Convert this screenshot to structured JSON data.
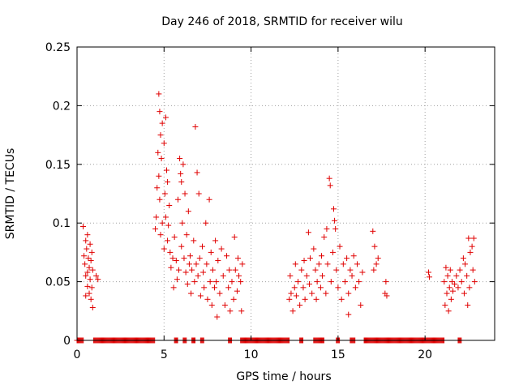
{
  "chart_data": {
    "type": "scatter",
    "title": "Day 246 of 2018, SRMTID for receiver wilu",
    "xlabel": "GPS time / hours",
    "ylabel": "SRMTID / TECUs",
    "xlim": [
      0,
      24
    ],
    "ylim": [
      0,
      0.25
    ],
    "xticks": [
      0,
      5,
      10,
      15,
      20
    ],
    "xtick_labels": [
      "0",
      "5",
      "10",
      "15",
      "20"
    ],
    "yticks": [
      0,
      0.05,
      0.1,
      0.15,
      0.2,
      0.25
    ],
    "ytick_labels": [
      "0",
      "0.05",
      "0.1",
      "0.15",
      "0.2",
      "0.25"
    ],
    "grid": true,
    "marker": "+",
    "color": "#e00000",
    "series": [
      {
        "name": "SRMTID",
        "points": [
          [
            0.35,
            0.097
          ],
          [
            0.4,
            0.072
          ],
          [
            0.45,
            0.065
          ],
          [
            0.5,
            0.085
          ],
          [
            0.5,
            0.055
          ],
          [
            0.55,
            0.078
          ],
          [
            0.6,
            0.09
          ],
          [
            0.6,
            0.046
          ],
          [
            0.65,
            0.07
          ],
          [
            0.7,
            0.062
          ],
          [
            0.7,
            0.04
          ],
          [
            0.75,
            0.082
          ],
          [
            0.75,
            0.052
          ],
          [
            0.8,
            0.068
          ],
          [
            0.8,
            0.035
          ],
          [
            0.85,
            0.075
          ],
          [
            0.85,
            0.045
          ],
          [
            0.9,
            0.06
          ],
          [
            0.9,
            0.028
          ],
          [
            0.5,
            0.038
          ],
          [
            0.6,
            0.058
          ],
          [
            1.1,
            0.055
          ],
          [
            1.2,
            0.052
          ],
          [
            4.5,
            0.095
          ],
          [
            4.55,
            0.105
          ],
          [
            4.6,
            0.13
          ],
          [
            4.65,
            0.16
          ],
          [
            4.7,
            0.21
          ],
          [
            4.7,
            0.14
          ],
          [
            4.75,
            0.195
          ],
          [
            4.75,
            0.12
          ],
          [
            4.8,
            0.175
          ],
          [
            4.8,
            0.09
          ],
          [
            4.85,
            0.155
          ],
          [
            4.9,
            0.185
          ],
          [
            4.9,
            0.1
          ],
          [
            5.0,
            0.168
          ],
          [
            5.0,
            0.078
          ],
          [
            5.05,
            0.125
          ],
          [
            5.1,
            0.19
          ],
          [
            5.1,
            0.105
          ],
          [
            5.15,
            0.145
          ],
          [
            5.2,
            0.135
          ],
          [
            5.2,
            0.085
          ],
          [
            5.25,
            0.098
          ],
          [
            5.3,
            0.115
          ],
          [
            5.35,
            0.075
          ],
          [
            5.4,
            0.062
          ],
          [
            5.5,
            0.07
          ],
          [
            5.55,
            0.045
          ],
          [
            5.6,
            0.088
          ],
          [
            5.7,
            0.068
          ],
          [
            5.75,
            0.052
          ],
          [
            5.8,
            0.12
          ],
          [
            5.85,
            0.06
          ],
          [
            5.9,
            0.155
          ],
          [
            5.95,
            0.142
          ],
          [
            6.0,
            0.135
          ],
          [
            6.0,
            0.08
          ],
          [
            6.05,
            0.1
          ],
          [
            6.1,
            0.15
          ],
          [
            6.15,
            0.07
          ],
          [
            6.2,
            0.125
          ],
          [
            6.25,
            0.058
          ],
          [
            6.3,
            0.09
          ],
          [
            6.35,
            0.048
          ],
          [
            6.4,
            0.11
          ],
          [
            6.45,
            0.065
          ],
          [
            6.5,
            0.072
          ],
          [
            6.55,
            0.04
          ],
          [
            6.6,
            0.06
          ],
          [
            6.7,
            0.085
          ],
          [
            6.75,
            0.05
          ],
          [
            6.8,
            0.182
          ],
          [
            6.85,
            0.065
          ],
          [
            6.9,
            0.143
          ],
          [
            6.95,
            0.055
          ],
          [
            7.0,
            0.125
          ],
          [
            7.05,
            0.07
          ],
          [
            7.1,
            0.038
          ],
          [
            7.2,
            0.08
          ],
          [
            7.25,
            0.058
          ],
          [
            7.3,
            0.045
          ],
          [
            7.4,
            0.1
          ],
          [
            7.45,
            0.065
          ],
          [
            7.5,
            0.035
          ],
          [
            7.6,
            0.12
          ],
          [
            7.65,
            0.05
          ],
          [
            7.7,
            0.075
          ],
          [
            7.75,
            0.03
          ],
          [
            7.8,
            0.06
          ],
          [
            7.9,
            0.045
          ],
          [
            7.95,
            0.085
          ],
          [
            8.0,
            0.05
          ],
          [
            8.05,
            0.02
          ],
          [
            8.1,
            0.068
          ],
          [
            8.2,
            0.04
          ],
          [
            8.3,
            0.078
          ],
          [
            8.4,
            0.055
          ],
          [
            8.5,
            0.03
          ],
          [
            8.6,
            0.072
          ],
          [
            8.7,
            0.045
          ],
          [
            8.75,
            0.06
          ],
          [
            8.8,
            0.025
          ],
          [
            8.9,
            0.05
          ],
          [
            9.0,
            0.035
          ],
          [
            9.05,
            0.088
          ],
          [
            9.1,
            0.06
          ],
          [
            9.2,
            0.042
          ],
          [
            9.25,
            0.07
          ],
          [
            9.3,
            0.055
          ],
          [
            9.4,
            0.05
          ],
          [
            9.45,
            0.025
          ],
          [
            9.5,
            0.065
          ],
          [
            12.2,
            0.035
          ],
          [
            12.25,
            0.055
          ],
          [
            12.3,
            0.04
          ],
          [
            12.4,
            0.025
          ],
          [
            12.5,
            0.045
          ],
          [
            12.55,
            0.065
          ],
          [
            12.6,
            0.038
          ],
          [
            12.7,
            0.05
          ],
          [
            12.8,
            0.03
          ],
          [
            12.9,
            0.06
          ],
          [
            13.0,
            0.045
          ],
          [
            13.05,
            0.068
          ],
          [
            13.1,
            0.035
          ],
          [
            13.2,
            0.055
          ],
          [
            13.3,
            0.092
          ],
          [
            13.35,
            0.048
          ],
          [
            13.4,
            0.07
          ],
          [
            13.5,
            0.04
          ],
          [
            13.6,
            0.078
          ],
          [
            13.7,
            0.06
          ],
          [
            13.75,
            0.035
          ],
          [
            13.8,
            0.05
          ],
          [
            13.9,
            0.065
          ],
          [
            14.0,
            0.045
          ],
          [
            14.05,
            0.072
          ],
          [
            14.1,
            0.055
          ],
          [
            14.2,
            0.088
          ],
          [
            14.3,
            0.04
          ],
          [
            14.35,
            0.095
          ],
          [
            14.4,
            0.065
          ],
          [
            14.5,
            0.138
          ],
          [
            14.55,
            0.132
          ],
          [
            14.6,
            0.05
          ],
          [
            14.7,
            0.075
          ],
          [
            14.75,
            0.112
          ],
          [
            14.8,
            0.102
          ],
          [
            14.85,
            0.095
          ],
          [
            14.9,
            0.06
          ],
          [
            15.0,
            0.045
          ],
          [
            15.1,
            0.08
          ],
          [
            15.2,
            0.035
          ],
          [
            15.3,
            0.065
          ],
          [
            15.4,
            0.05
          ],
          [
            15.5,
            0.07
          ],
          [
            15.6,
            0.04
          ],
          [
            15.7,
            0.06
          ],
          [
            15.8,
            0.055
          ],
          [
            15.9,
            0.072
          ],
          [
            16.0,
            0.045
          ],
          [
            16.1,
            0.065
          ],
          [
            16.2,
            0.05
          ],
          [
            16.3,
            0.03
          ],
          [
            16.4,
            0.058
          ],
          [
            15.6,
            0.022
          ],
          [
            17.0,
            0.093
          ],
          [
            17.05,
            0.06
          ],
          [
            17.1,
            0.08
          ],
          [
            17.2,
            0.065
          ],
          [
            17.3,
            0.07
          ],
          [
            17.7,
            0.04
          ],
          [
            17.75,
            0.05
          ],
          [
            17.8,
            0.038
          ],
          [
            20.2,
            0.058
          ],
          [
            20.25,
            0.054
          ],
          [
            21.1,
            0.05
          ],
          [
            21.15,
            0.03
          ],
          [
            21.2,
            0.062
          ],
          [
            21.25,
            0.04
          ],
          [
            21.3,
            0.055
          ],
          [
            21.35,
            0.025
          ],
          [
            21.4,
            0.045
          ],
          [
            21.45,
            0.06
          ],
          [
            21.5,
            0.035
          ],
          [
            21.55,
            0.05
          ],
          [
            21.6,
            0.042
          ],
          [
            21.7,
            0.048
          ],
          [
            21.8,
            0.055
          ],
          [
            21.9,
            0.045
          ],
          [
            22.0,
            0.06
          ],
          [
            22.1,
            0.05
          ],
          [
            22.2,
            0.07
          ],
          [
            22.25,
            0.04
          ],
          [
            22.3,
            0.065
          ],
          [
            22.4,
            0.055
          ],
          [
            22.45,
            0.03
          ],
          [
            22.5,
            0.087
          ],
          [
            22.55,
            0.045
          ],
          [
            22.6,
            0.075
          ],
          [
            22.7,
            0.08
          ],
          [
            22.75,
            0.06
          ],
          [
            22.8,
            0.087
          ],
          [
            22.85,
            0.05
          ]
        ],
        "zero_segments": [
          [
            0.0,
            0.4
          ],
          [
            0.95,
            4.5
          ],
          [
            5.6,
            5.8
          ],
          [
            6.1,
            6.3
          ],
          [
            6.6,
            6.8
          ],
          [
            7.1,
            7.3
          ],
          [
            8.7,
            8.9
          ],
          [
            9.4,
            12.2
          ],
          [
            12.8,
            13.0
          ],
          [
            13.6,
            14.2
          ],
          [
            14.9,
            15.1
          ],
          [
            15.7,
            16.0
          ],
          [
            16.5,
            21.1
          ],
          [
            21.9,
            22.1
          ]
        ]
      }
    ]
  }
}
